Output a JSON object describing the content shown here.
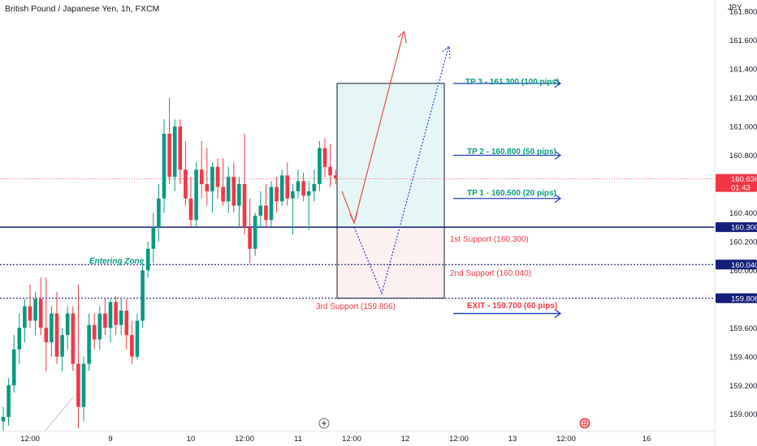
{
  "header": {
    "title": "British Pound / Japanese Yen, 1h, FXCM",
    "currency": "JPY"
  },
  "colors": {
    "up": "#089981",
    "down": "#f23645",
    "level": "#131f7a",
    "arrow": "#1f3fc0",
    "tpzone": "#e6f6f6",
    "slzone": "#fdf0f1"
  },
  "chart_data": {
    "type": "candlestick",
    "title": "British Pound / Japanese Yen, 1h, FXCM",
    "ylim": [
      158.88,
      161.88
    ],
    "yticks": [
      "161.800",
      "161.600",
      "161.400",
      "161.200",
      "161.000",
      "160.800",
      "160.600",
      "160.400",
      "160.200",
      "160.000",
      "159.800",
      "159.600",
      "159.400",
      "159.200",
      "159.000"
    ],
    "xticks": [
      {
        "label": "12:00",
        "t": 5
      },
      {
        "label": "9",
        "t": 20
      },
      {
        "label": "10",
        "t": 35
      },
      {
        "label": "12:00",
        "t": 45
      },
      {
        "label": "11",
        "t": 55
      },
      {
        "label": "12:00",
        "t": 65
      },
      {
        "label": "12",
        "t": 75
      },
      {
        "label": "12:00",
        "t": 85
      },
      {
        "label": "13",
        "t": 95
      },
      {
        "label": "12:00",
        "t": 105
      },
      {
        "label": "16",
        "t": 120
      }
    ],
    "candles": [
      {
        "o": 158.95,
        "h": 159.05,
        "l": 158.88,
        "c": 158.98
      },
      {
        "o": 158.98,
        "h": 159.25,
        "l": 158.92,
        "c": 159.2
      },
      {
        "o": 159.2,
        "h": 159.55,
        "l": 159.15,
        "c": 159.45
      },
      {
        "o": 159.45,
        "h": 159.7,
        "l": 159.35,
        "c": 159.6
      },
      {
        "o": 159.6,
        "h": 159.8,
        "l": 159.5,
        "c": 159.75
      },
      {
        "o": 159.75,
        "h": 159.9,
        "l": 159.6,
        "c": 159.65
      },
      {
        "o": 159.65,
        "h": 159.85,
        "l": 159.55,
        "c": 159.8
      },
      {
        "o": 159.8,
        "h": 159.95,
        "l": 159.55,
        "c": 159.6
      },
      {
        "o": 159.6,
        "h": 159.95,
        "l": 159.3,
        "c": 159.5
      },
      {
        "o": 159.5,
        "h": 159.75,
        "l": 159.4,
        "c": 159.7
      },
      {
        "o": 159.7,
        "h": 159.85,
        "l": 159.35,
        "c": 159.4
      },
      {
        "o": 159.4,
        "h": 159.6,
        "l": 159.3,
        "c": 159.55
      },
      {
        "o": 159.55,
        "h": 159.75,
        "l": 159.45,
        "c": 159.7
      },
      {
        "o": 159.7,
        "h": 159.75,
        "l": 159.3,
        "c": 159.35
      },
      {
        "o": 159.35,
        "h": 159.9,
        "l": 158.9,
        "c": 159.05
      },
      {
        "o": 159.05,
        "h": 159.4,
        "l": 158.95,
        "c": 159.35
      },
      {
        "o": 159.35,
        "h": 159.7,
        "l": 159.3,
        "c": 159.62
      },
      {
        "o": 159.62,
        "h": 159.7,
        "l": 159.45,
        "c": 159.52
      },
      {
        "o": 159.52,
        "h": 159.75,
        "l": 159.45,
        "c": 159.7
      },
      {
        "o": 159.7,
        "h": 159.8,
        "l": 159.55,
        "c": 159.6
      },
      {
        "o": 159.6,
        "h": 159.8,
        "l": 159.5,
        "c": 159.78
      },
      {
        "o": 159.78,
        "h": 159.82,
        "l": 159.55,
        "c": 159.62
      },
      {
        "o": 159.62,
        "h": 159.8,
        "l": 159.55,
        "c": 159.72
      },
      {
        "o": 159.72,
        "h": 159.8,
        "l": 159.45,
        "c": 159.55
      },
      {
        "o": 159.55,
        "h": 159.65,
        "l": 159.35,
        "c": 159.4
      },
      {
        "o": 159.4,
        "h": 159.7,
        "l": 159.38,
        "c": 159.65
      },
      {
        "o": 159.65,
        "h": 160.05,
        "l": 159.6,
        "c": 160.0
      },
      {
        "o": 160.0,
        "h": 160.2,
        "l": 159.95,
        "c": 160.15
      },
      {
        "o": 160.15,
        "h": 160.4,
        "l": 160.05,
        "c": 160.3
      },
      {
        "o": 160.3,
        "h": 160.6,
        "l": 160.2,
        "c": 160.5
      },
      {
        "o": 160.5,
        "h": 161.05,
        "l": 160.4,
        "c": 160.95
      },
      {
        "o": 160.95,
        "h": 161.2,
        "l": 160.6,
        "c": 160.65
      },
      {
        "o": 160.65,
        "h": 161.05,
        "l": 160.55,
        "c": 161.0
      },
      {
        "o": 161.0,
        "h": 161.05,
        "l": 160.6,
        "c": 160.7
      },
      {
        "o": 160.7,
        "h": 160.9,
        "l": 160.45,
        "c": 160.5
      },
      {
        "o": 160.5,
        "h": 160.65,
        "l": 160.3,
        "c": 160.35
      },
      {
        "o": 160.35,
        "h": 160.75,
        "l": 160.3,
        "c": 160.7
      },
      {
        "o": 160.7,
        "h": 160.9,
        "l": 160.5,
        "c": 160.6
      },
      {
        "o": 160.6,
        "h": 160.85,
        "l": 160.45,
        "c": 160.55
      },
      {
        "o": 160.55,
        "h": 160.75,
        "l": 160.4,
        "c": 160.72
      },
      {
        "o": 160.72,
        "h": 160.78,
        "l": 160.5,
        "c": 160.58
      },
      {
        "o": 160.58,
        "h": 160.78,
        "l": 160.45,
        "c": 160.48
      },
      {
        "o": 160.48,
        "h": 160.72,
        "l": 160.4,
        "c": 160.65
      },
      {
        "o": 160.65,
        "h": 160.75,
        "l": 160.4,
        "c": 160.45
      },
      {
        "o": 160.45,
        "h": 160.65,
        "l": 160.3,
        "c": 160.6
      },
      {
        "o": 160.6,
        "h": 160.95,
        "l": 160.25,
        "c": 160.3
      },
      {
        "o": 160.3,
        "h": 160.5,
        "l": 160.05,
        "c": 160.15
      },
      {
        "o": 160.15,
        "h": 160.4,
        "l": 160.1,
        "c": 160.38
      },
      {
        "o": 160.38,
        "h": 160.55,
        "l": 160.3,
        "c": 160.45
      },
      {
        "o": 160.45,
        "h": 160.6,
        "l": 160.3,
        "c": 160.35
      },
      {
        "o": 160.35,
        "h": 160.62,
        "l": 160.3,
        "c": 160.58
      },
      {
        "o": 160.58,
        "h": 160.65,
        "l": 160.4,
        "c": 160.48
      },
      {
        "o": 160.48,
        "h": 160.7,
        "l": 160.45,
        "c": 160.66
      },
      {
        "o": 160.66,
        "h": 160.75,
        "l": 160.45,
        "c": 160.5
      },
      {
        "o": 160.5,
        "h": 160.6,
        "l": 160.25,
        "c": 160.55
      },
      {
        "o": 160.55,
        "h": 160.7,
        "l": 160.5,
        "c": 160.62
      },
      {
        "o": 160.62,
        "h": 160.68,
        "l": 160.48,
        "c": 160.52
      },
      {
        "o": 160.52,
        "h": 160.62,
        "l": 160.28,
        "c": 160.55
      },
      {
        "o": 160.55,
        "h": 160.7,
        "l": 160.48,
        "c": 160.6
      },
      {
        "o": 160.6,
        "h": 160.9,
        "l": 160.55,
        "c": 160.85
      },
      {
        "o": 160.85,
        "h": 160.92,
        "l": 160.65,
        "c": 160.72
      },
      {
        "o": 160.72,
        "h": 160.88,
        "l": 160.58,
        "c": 160.66
      },
      {
        "o": 160.66,
        "h": 160.7,
        "l": 160.6,
        "c": 160.64
      }
    ],
    "levels": [
      {
        "name": "entry",
        "value": 160.3,
        "badge": "160.300",
        "style": "solid"
      },
      {
        "name": "support-2",
        "value": 160.04,
        "badge": "160.040",
        "style": "dotted"
      },
      {
        "name": "support-3",
        "value": 159.806,
        "badge": "159.806",
        "style": "dotted"
      },
      {
        "name": "last-price",
        "value": 160.636,
        "badge": "160.636",
        "badge2": "01:43",
        "style": "price"
      }
    ],
    "annotations": {
      "tp3": "TP 3 - 161.300 (100 pips)",
      "tp2": "TP 2 - 160.800 (50 pips)",
      "tp1": "TP 1 - 160.500 (20 pips)",
      "exit": "EXIT - 159.700 (60 pips)",
      "support1": "1st Support (160.300)",
      "support2": "2nd Support (160.040)",
      "support3": "3rd Support (159.806)",
      "entering_zone": "Entering Zone"
    },
    "zones": {
      "tp_top": 161.3,
      "entry": 160.3,
      "sl_bottom": 159.806
    }
  }
}
